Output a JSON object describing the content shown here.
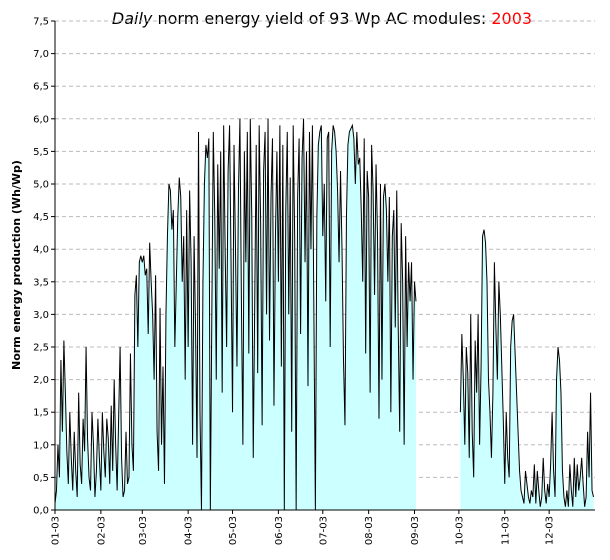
{
  "chart_data": {
    "type": "area",
    "title": [
      "Daily",
      "norm energy yield of 93 Wp AC modules:",
      "2003"
    ],
    "title_color": "#ff0000",
    "ylabel": "Norm energy production (Wh/Wp)",
    "color": "#ccffff",
    "line_color": "#000000",
    "grid": true,
    "ylim": [
      0,
      7.5
    ],
    "yticks": [
      {
        "value": 0,
        "label": "0,0"
      },
      {
        "value": 0.5,
        "label": "0,5"
      },
      {
        "value": 1,
        "label": "1,0"
      },
      {
        "value": 1.5,
        "label": "1,5"
      },
      {
        "value": 2,
        "label": "2,0"
      },
      {
        "value": 2.5,
        "label": "2,5"
      },
      {
        "value": 3,
        "label": "3,0"
      },
      {
        "value": 3.5,
        "label": "3,5"
      },
      {
        "value": 4,
        "label": "4,0"
      },
      {
        "value": 4.5,
        "label": "4,5"
      },
      {
        "value": 5,
        "label": "5,0"
      },
      {
        "value": 5.5,
        "label": "5,5"
      },
      {
        "value": 6,
        "label": "6,0"
      },
      {
        "value": 6.5,
        "label": "6,5"
      },
      {
        "value": 7,
        "label": "7,0"
      },
      {
        "value": 7.5,
        "label": "7,5"
      }
    ],
    "categories": [
      "01-03",
      null,
      null,
      null,
      null,
      null,
      null,
      null,
      null,
      null,
      null,
      null,
      null,
      null,
      null,
      null,
      null,
      null,
      null,
      null,
      null,
      null,
      null,
      null,
      null,
      null,
      null,
      null,
      null,
      null,
      null,
      "02-03",
      null,
      null,
      null,
      null,
      null,
      null,
      null,
      null,
      null,
      null,
      null,
      null,
      null,
      null,
      null,
      null,
      null,
      null,
      null,
      null,
      null,
      null,
      null,
      null,
      null,
      null,
      null,
      "03-03",
      null,
      null,
      null,
      null,
      null,
      null,
      null,
      null,
      null,
      null,
      null,
      null,
      null,
      null,
      null,
      null,
      null,
      null,
      null,
      null,
      null,
      null,
      null,
      null,
      null,
      null,
      null,
      null,
      null,
      null,
      "04-03",
      null,
      null,
      null,
      null,
      null,
      null,
      null,
      null,
      null,
      null,
      null,
      null,
      null,
      null,
      null,
      null,
      null,
      null,
      null,
      null,
      null,
      null,
      null,
      null,
      null,
      null,
      null,
      null,
      null,
      "05-03",
      null,
      null,
      null,
      null,
      null,
      null,
      null,
      null,
      null,
      null,
      null,
      null,
      null,
      null,
      null,
      null,
      null,
      null,
      null,
      null,
      null,
      null,
      null,
      null,
      null,
      null,
      null,
      null,
      null,
      null,
      "06-03",
      null,
      null,
      null,
      null,
      null,
      null,
      null,
      null,
      null,
      null,
      null,
      null,
      null,
      null,
      null,
      null,
      null,
      null,
      null,
      null,
      null,
      null,
      null,
      null,
      null,
      null,
      null,
      null,
      null,
      "07-03",
      null,
      null,
      null,
      null,
      null,
      null,
      null,
      null,
      null,
      null,
      null,
      null,
      null,
      null,
      null,
      null,
      null,
      null,
      null,
      null,
      null,
      null,
      null,
      null,
      null,
      null,
      null,
      null,
      null,
      null,
      "08-03",
      null,
      null,
      null,
      null,
      null,
      null,
      null,
      null,
      null,
      null,
      null,
      null,
      null,
      null,
      null,
      null,
      null,
      null,
      null,
      null,
      null,
      null,
      null,
      null,
      null,
      null,
      null,
      null,
      null,
      null,
      "09-03",
      null,
      null,
      null,
      null,
      null,
      null,
      null,
      null,
      null,
      null,
      null,
      null,
      null,
      null,
      null,
      null,
      null,
      null,
      null,
      null,
      null,
      null,
      null,
      null,
      null,
      null,
      null,
      null,
      null,
      "10-03",
      null,
      null,
      null,
      null,
      null,
      null,
      null,
      null,
      null,
      null,
      null,
      null,
      null,
      null,
      null,
      null,
      null,
      null,
      null,
      null,
      null,
      null,
      null,
      null,
      null,
      null,
      null,
      null,
      null,
      null,
      "11-03",
      null,
      null,
      null,
      null,
      null,
      null,
      null,
      null,
      null,
      null,
      null,
      null,
      null,
      null,
      null,
      null,
      null,
      null,
      null,
      null,
      null,
      null,
      null,
      null,
      null,
      null,
      null,
      null,
      null,
      "12-03",
      null,
      null,
      null,
      null,
      null,
      null,
      null,
      null,
      null,
      null,
      null,
      null,
      null,
      null,
      null,
      null,
      null,
      null,
      null,
      null,
      null,
      null,
      null,
      null,
      null,
      null,
      null,
      null,
      null,
      null
    ],
    "values": [
      0.1,
      0.3,
      1.0,
      0.5,
      2.3,
      1.2,
      2.6,
      1.8,
      0.9,
      0.4,
      1.5,
      0.8,
      0.3,
      1.2,
      0.6,
      0.2,
      1.8,
      0.7,
      0.4,
      1.4,
      0.9,
      2.5,
      1.1,
      0.5,
      0.3,
      1.5,
      1.0,
      0.2,
      0.6,
      1.4,
      0.8,
      0.3,
      1.5,
      0.9,
      0.5,
      1.4,
      1.1,
      0.4,
      1.6,
      0.6,
      2.0,
      1.0,
      0.3,
      1.4,
      2.5,
      0.8,
      0.2,
      0.3,
      1.2,
      0.4,
      0.5,
      2.4,
      1.0,
      0.6,
      3.3,
      3.6,
      2.5,
      3.8,
      3.9,
      3.8,
      3.9,
      3.6,
      3.7,
      2.7,
      4.1,
      3.5,
      3.0,
      2.0,
      3.6,
      1.2,
      0.6,
      3.1,
      1.0,
      2.2,
      0.4,
      3.0,
      4.2,
      5.0,
      4.9,
      4.3,
      4.6,
      2.5,
      3.5,
      4.5,
      5.1,
      4.8,
      3.5,
      4.2,
      2.0,
      4.6,
      2.5,
      4.9,
      3.8,
      1.0,
      4.2,
      2.8,
      0.8,
      5.8,
      1.5,
      0.0,
      3.5,
      5.0,
      5.6,
      5.4,
      5.7,
      0.0,
      3.0,
      5.8,
      4.5,
      2.0,
      5.3,
      3.7,
      5.5,
      1.8,
      5.9,
      4.0,
      2.5,
      5.2,
      5.9,
      3.8,
      1.5,
      5.6,
      4.0,
      2.2,
      4.9,
      6.0,
      3.2,
      1.0,
      5.5,
      3.8,
      5.8,
      2.4,
      6.0,
      4.5,
      0.8,
      3.2,
      5.6,
      2.1,
      5.9,
      4.4,
      1.3,
      5.2,
      5.8,
      3.0,
      6.0,
      2.6,
      4.8,
      5.7,
      1.6,
      4.2,
      5.5,
      3.5,
      5.9,
      2.2,
      5.6,
      0.0,
      4.6,
      5.8,
      3.0,
      5.1,
      1.2,
      5.9,
      4.2,
      0.0,
      4.8,
      5.7,
      2.7,
      5.4,
      6.0,
      3.8,
      5.5,
      1.9,
      5.8,
      4.0,
      5.9,
      3.0,
      0.0,
      4.5,
      5.6,
      5.8,
      5.9,
      4.2,
      5.0,
      3.2,
      5.7,
      5.8,
      2.5,
      5.5,
      5.9,
      5.8,
      5.5,
      4.9,
      3.8,
      5.2,
      4.0,
      2.3,
      1.3,
      4.5,
      5.6,
      5.8,
      5.85,
      5.9,
      5.7,
      5.0,
      5.8,
      5.3,
      5.4,
      4.6,
      3.5,
      5.7,
      2.4,
      5.2,
      4.8,
      1.8,
      5.6,
      4.9,
      3.3,
      5.3,
      4.2,
      1.4,
      5.0,
      2.0,
      4.8,
      5.0,
      4.6,
      3.5,
      4.8,
      1.5,
      4.2,
      4.6,
      2.8,
      4.9,
      2.8,
      1.2,
      4.4,
      3.5,
      1.0,
      4.2,
      2.5,
      3.8,
      3.2,
      3.8,
      2.0,
      3.5,
      3.2,
      null,
      null,
      null,
      null,
      null,
      null,
      null,
      null,
      null,
      null,
      null,
      null,
      null,
      null,
      null,
      null,
      null,
      null,
      null,
      null,
      null,
      null,
      null,
      null,
      null,
      null,
      null,
      null,
      null,
      1.5,
      2.7,
      2.0,
      1.0,
      2.5,
      2.1,
      0.8,
      3.0,
      1.2,
      0.5,
      2.6,
      1.8,
      3.0,
      1.0,
      2.2,
      4.2,
      4.3,
      4.1,
      3.5,
      2.0,
      1.5,
      0.8,
      1.8,
      3.8,
      2.8,
      2.0,
      3.5,
      3.0,
      2.2,
      1.4,
      0.4,
      1.5,
      0.8,
      0.5,
      2.5,
      2.9,
      3.0,
      2.4,
      1.8,
      1.2,
      0.6,
      0.3,
      0.2,
      0.1,
      0.6,
      0.4,
      0.2,
      0.1,
      0.3,
      0.2,
      0.7,
      0.1,
      0.6,
      0.3,
      0.05,
      0.2,
      0.8,
      0.3,
      0.1,
      0.4,
      0.2,
      0.7,
      1.5,
      0.6,
      0.2,
      2.0,
      2.5,
      2.3,
      1.8,
      0.6,
      0.2,
      0.05,
      0.3,
      0.05,
      0.7,
      0.3,
      0.05,
      0.8,
      0.2,
      0.7,
      0.3,
      0.5,
      0.8,
      0.4,
      0.05,
      0.2,
      1.2,
      0.5,
      1.8,
      0.3,
      0.2
    ]
  }
}
